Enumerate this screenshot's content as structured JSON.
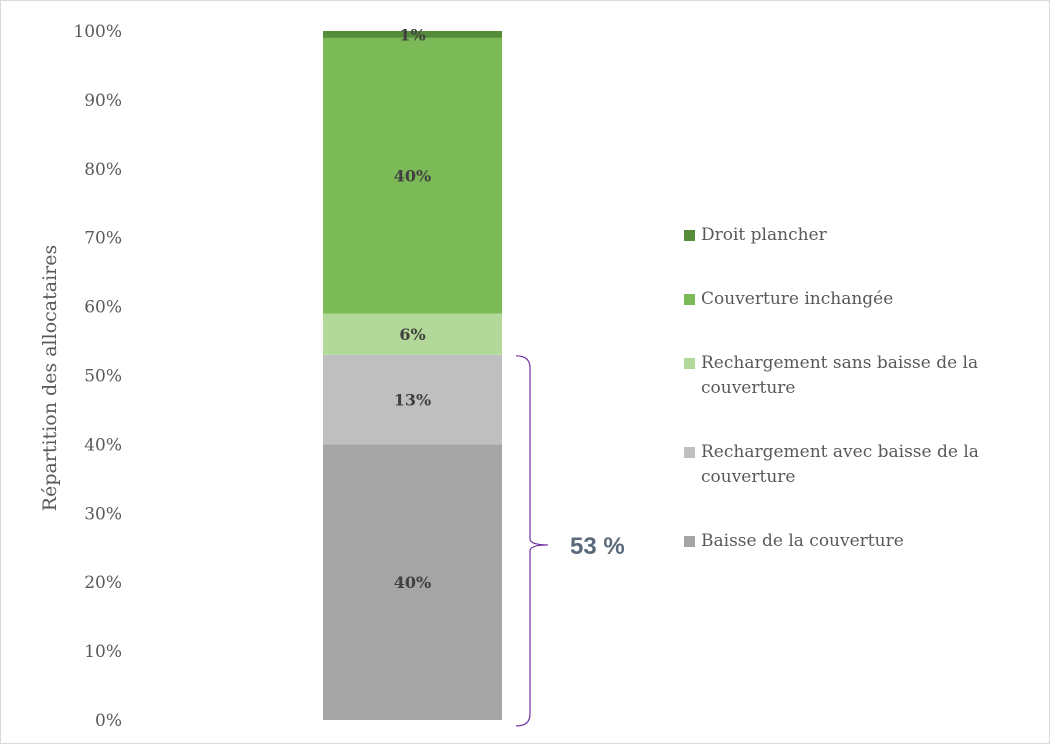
{
  "chart_data": {
    "type": "bar",
    "stacked": true,
    "categories": [
      ""
    ],
    "ylabel": "Répartition des allocataires",
    "ylim": [
      0,
      100
    ],
    "yticks": [
      "0%",
      "10%",
      "20%",
      "30%",
      "40%",
      "50%",
      "60%",
      "70%",
      "80%",
      "90%",
      "100%"
    ],
    "legend_position": "right",
    "series": [
      {
        "name": "Baisse de la couverture",
        "values": [
          40
        ],
        "label": "40%",
        "color": "#a5a5a5"
      },
      {
        "name": "Rechargement avec baisse de la couverture",
        "values": [
          13
        ],
        "label": "13%",
        "color": "#bfbfbf"
      },
      {
        "name": "Rechargement sans baisse de la couverture",
        "values": [
          6
        ],
        "label": "6%",
        "color": "#b3d99a"
      },
      {
        "name": "Couverture inchangée",
        "values": [
          40
        ],
        "label": "40%",
        "color": "#7bba57"
      },
      {
        "name": "Droit plancher",
        "values": [
          1
        ],
        "label": "1%",
        "color": "#548c3a"
      }
    ],
    "annotations": [
      {
        "text": "53 %",
        "spans_series": [
          "Baisse de la couverture",
          "Rechargement avec baisse de la couverture"
        ],
        "range": [
          0,
          53
        ],
        "color": "#7030a0"
      }
    ]
  }
}
